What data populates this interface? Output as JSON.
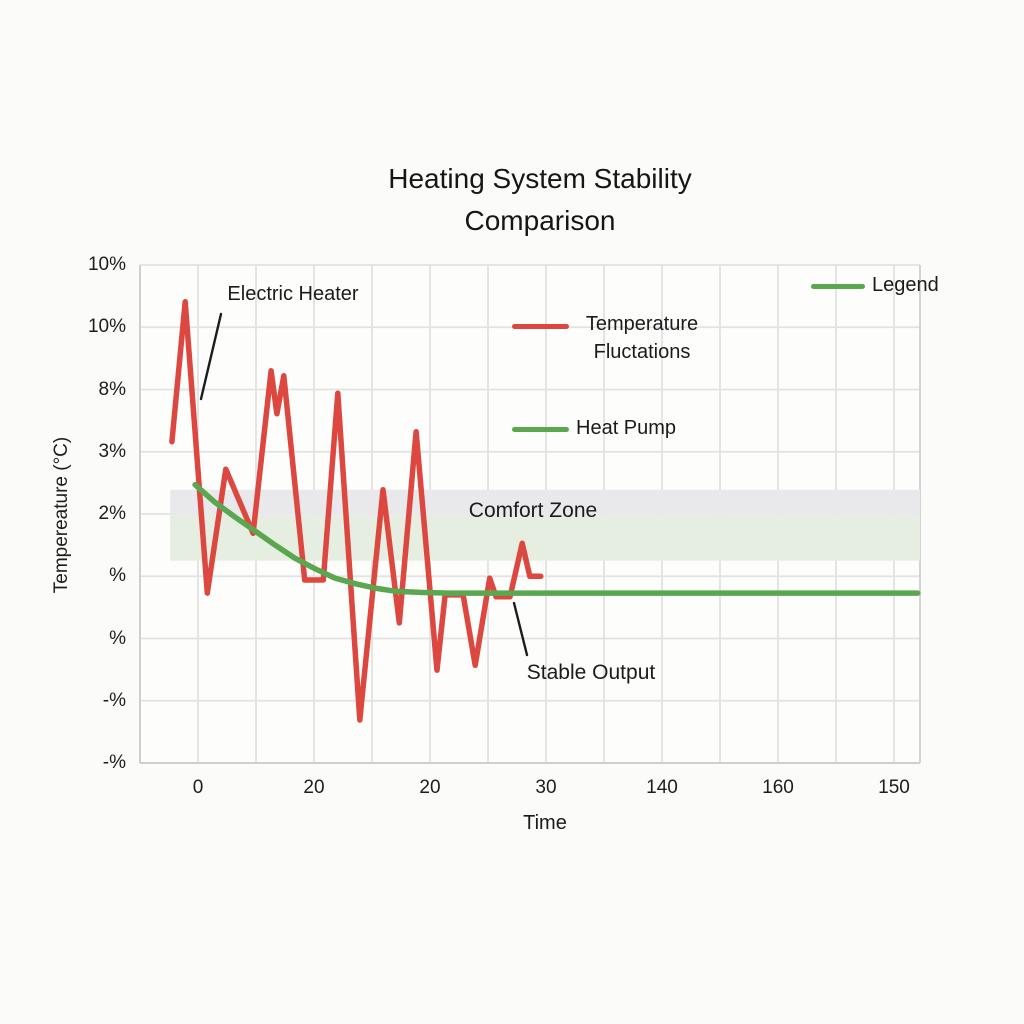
{
  "title": {
    "line1": "Heating System Stability",
    "line2": "Comparison"
  },
  "colors": {
    "red": "#dc4840",
    "green": "#5aa750",
    "grid": "#e2e2e2",
    "border": "#cfcfcf",
    "plot_bg": "#fdfdfc",
    "leader": "#1c1c1c",
    "band_gray": "#e9e9ec",
    "band_green": "#e6eee2"
  },
  "chart_data": {
    "type": "line",
    "title": "Heating System Stability Comparison",
    "xlabel": "Time",
    "ylabel": "Tempereature (°C)",
    "x_tick_labels": [
      "0",
      "20",
      "20",
      "30",
      "140",
      "160",
      "150"
    ],
    "y_tick_labels": [
      "10%",
      "10%",
      "8%",
      "3%",
      "2%",
      "%",
      "%",
      "-%",
      "-%"
    ],
    "grid": true,
    "units_doc": "points_units: x = vertical-gridline index from left axis, y = horizontal-gridline index from bottom axis",
    "legend": {
      "floating_label": "Legend",
      "entries": [
        {
          "label_lines": [
            "Temperature",
            "Fluctations"
          ],
          "color": "#dc4840"
        },
        {
          "label_lines": [
            "Heat Pump"
          ],
          "color": "#5aa750"
        }
      ]
    },
    "annotations": [
      {
        "text": "Electric Heater"
      },
      {
        "text": "Comfort Zone"
      },
      {
        "text": "Stable Output"
      }
    ],
    "comfort_zone": {
      "x_units": [
        0.52,
        13.45
      ],
      "gray_band_y_units": [
        3.98,
        4.39
      ],
      "green_band_y_units": [
        3.25,
        3.98
      ]
    },
    "series": [
      {
        "name": "Temperature Fluctations (Electric Heater)",
        "color": "#dc4840",
        "points_units": [
          [
            0.55,
            5.16
          ],
          [
            0.78,
            7.41
          ],
          [
            1.16,
            2.73
          ],
          [
            1.48,
            4.72
          ],
          [
            1.95,
            3.69
          ],
          [
            2.26,
            6.3
          ],
          [
            2.36,
            5.61
          ],
          [
            2.48,
            6.22
          ],
          [
            2.84,
            2.94
          ],
          [
            3.16,
            2.94
          ],
          [
            3.41,
            5.94
          ],
          [
            3.79,
            0.69
          ],
          [
            4.19,
            4.39
          ],
          [
            4.47,
            2.25
          ],
          [
            4.76,
            5.32
          ],
          [
            5.12,
            1.49
          ],
          [
            5.26,
            2.7
          ],
          [
            5.57,
            2.7
          ],
          [
            5.78,
            1.57
          ],
          [
            6.03,
            2.97
          ],
          [
            6.14,
            2.67
          ],
          [
            6.38,
            2.67
          ],
          [
            6.59,
            3.53
          ],
          [
            6.72,
            3.0
          ],
          [
            6.91,
            3.0
          ]
        ]
      },
      {
        "name": "Heat Pump",
        "color": "#5aa750",
        "points_units": [
          [
            0.95,
            4.47
          ],
          [
            1.29,
            4.19
          ],
          [
            1.64,
            3.95
          ],
          [
            1.98,
            3.73
          ],
          [
            2.33,
            3.5
          ],
          [
            2.67,
            3.29
          ],
          [
            3.02,
            3.12
          ],
          [
            3.36,
            2.97
          ],
          [
            3.71,
            2.88
          ],
          [
            4.05,
            2.81
          ],
          [
            4.4,
            2.76
          ],
          [
            4.83,
            2.74
          ],
          [
            5.34,
            2.73
          ],
          [
            13.41,
            2.73
          ]
        ]
      }
    ],
    "leader_lines": [
      {
        "name": "electric-heater",
        "from": [
          221,
          314
        ],
        "to": [
          201,
          399
        ]
      },
      {
        "name": "stable-output",
        "from": [
          514,
          603
        ],
        "to": [
          527,
          655
        ]
      }
    ]
  }
}
